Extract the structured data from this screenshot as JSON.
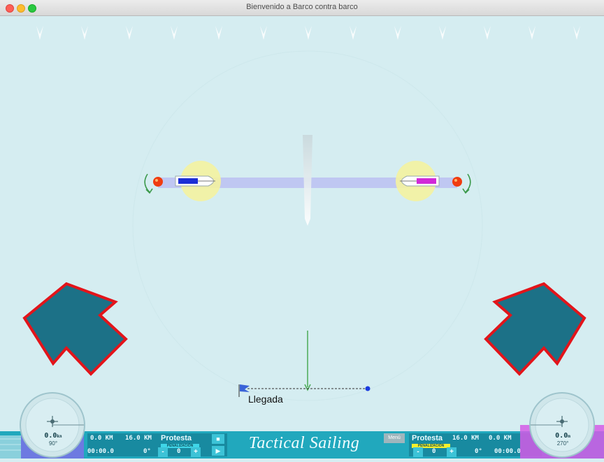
{
  "window": {
    "title": "Bienvenido a Barco contra barco"
  },
  "course": {
    "finish_label": "Llegada"
  },
  "left_boat": {
    "speed": "0.0",
    "speed_unit": "kn",
    "heading": "90°",
    "color": "#7a72e8",
    "dist1": "0.0 KM",
    "dist2": "16.0 KM",
    "protest_label": "Protesta",
    "penalty_label": "PENALIZACIÓN",
    "timer": "00:00.0",
    "angle": "0°",
    "minus": "-",
    "count": "0",
    "plus": "+"
  },
  "right_boat": {
    "speed": "0.0",
    "speed_unit": "m",
    "heading": "270°",
    "color": "#d45ae6",
    "dist1": "16.0 KM",
    "dist2": "0.0 KM",
    "protest_label": "Protesta",
    "penalty_label": "PENALIZACIÓN",
    "timer": "00:00.0",
    "angle": "0°",
    "minus": "-",
    "count": "0",
    "plus": "+"
  },
  "controls": {
    "stop_icon": "stop-icon",
    "play_icon": "play-icon",
    "menu_label": "Menú"
  },
  "brand": "Tactical Sailing",
  "colors": {
    "sea": "#d5edf1",
    "bar": "#21a8bd",
    "arrow_fill": "#1c7187",
    "arrow_stroke": "#e3141a",
    "zone": "#f4f2a0"
  }
}
